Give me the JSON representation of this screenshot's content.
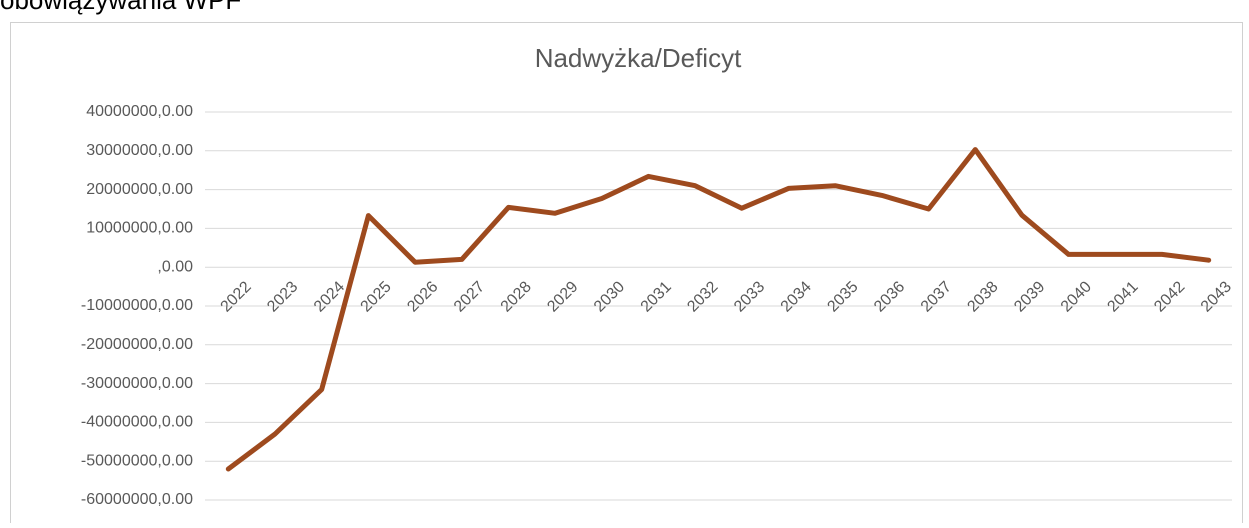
{
  "caption": "obowiązywania WPF",
  "chart_data": {
    "type": "line",
    "title": "Nadwyżka/Deficyt",
    "categories": [
      "2022",
      "2023",
      "2024",
      "2025",
      "2026",
      "2027",
      "2028",
      "2029",
      "2030",
      "2031",
      "2032",
      "2033",
      "2034",
      "2035",
      "2036",
      "2037",
      "2038",
      "2039",
      "2040",
      "2041",
      "2042",
      "2043"
    ],
    "series": [
      {
        "name": "Nadwyżka/Deficyt",
        "color": "#9e4a1e",
        "values": [
          -52000000,
          -43000000,
          -31500000,
          13300000,
          1300000,
          2000000,
          15400000,
          13900000,
          17700000,
          23400000,
          21000000,
          15200000,
          20300000,
          21000000,
          18500000,
          15000000,
          30300000,
          13400000,
          3300000,
          3300000,
          3300000,
          1800000
        ]
      }
    ],
    "ylim": [
      -60000000,
      40000000
    ],
    "yticks": [
      {
        "value": 40000000,
        "label": "40000000,0.00"
      },
      {
        "value": 30000000,
        "label": "30000000,0.00"
      },
      {
        "value": 20000000,
        "label": "20000000,0.00"
      },
      {
        "value": 10000000,
        "label": "10000000,0.00"
      },
      {
        "value": 0,
        "label": ",0.00"
      },
      {
        "value": -10000000,
        "label": "-10000000,0.00"
      },
      {
        "value": -20000000,
        "label": "-20000000,0.00"
      },
      {
        "value": -30000000,
        "label": "-30000000,0.00"
      },
      {
        "value": -40000000,
        "label": "-40000000,0.00"
      },
      {
        "value": -50000000,
        "label": "-50000000,0.00"
      },
      {
        "value": -60000000,
        "label": "-60000000,0.00"
      }
    ],
    "grid": true
  }
}
